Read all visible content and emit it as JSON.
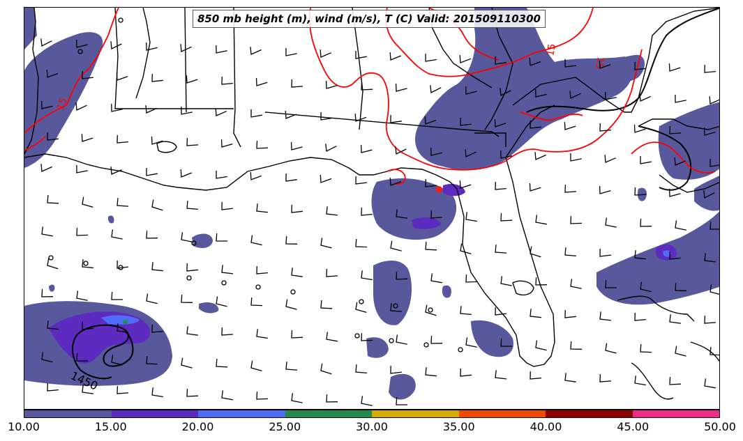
{
  "title": "850 mb height (m), wind (m/s), T (C) Valid: 201509110300",
  "colors": {
    "wind_speed_fill": "#5a5a9e",
    "isotherm": "#ff0000",
    "height_contour": "#000000",
    "coastline": "#000000"
  },
  "contour_labels": {
    "height_1450": "1450",
    "isotherm_15_west": "15",
    "isotherm_15_north": "15",
    "isotherm_15_northeast": "15"
  },
  "colorbar": {
    "segments": [
      {
        "from": 10,
        "to": 15,
        "color": "#58589c"
      },
      {
        "from": 15,
        "to": 20,
        "color": "#5e2bc0"
      },
      {
        "from": 20,
        "to": 25,
        "color": "#4f6cf7"
      },
      {
        "from": 25,
        "to": 30,
        "color": "#228a4e"
      },
      {
        "from": 30,
        "to": 35,
        "color": "#d4ac00"
      },
      {
        "from": 35,
        "to": 40,
        "color": "#f04a00"
      },
      {
        "from": 40,
        "to": 45,
        "color": "#8e0000"
      },
      {
        "from": 45,
        "to": 50,
        "color": "#f02a8a"
      }
    ],
    "tick_labels": [
      "10.00",
      "15.00",
      "20.00",
      "25.00",
      "30.00",
      "35.00",
      "40.00",
      "45.00",
      "50.00"
    ]
  }
}
